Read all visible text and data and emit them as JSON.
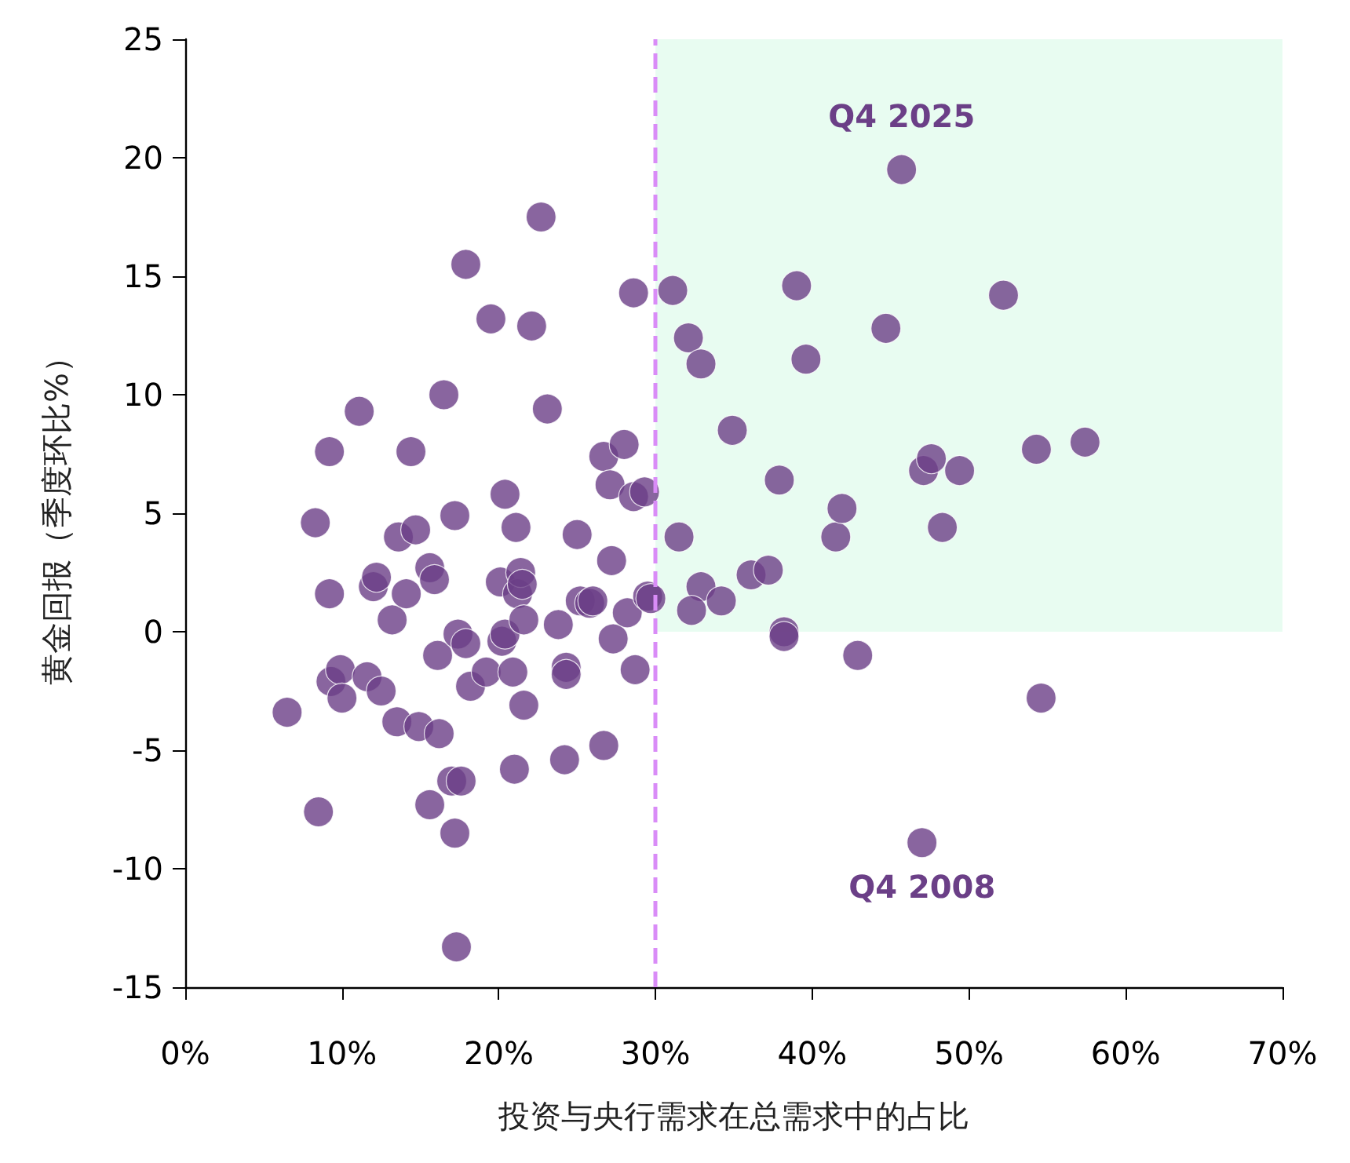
{
  "chart_data": {
    "type": "scatter",
    "xlabel": "投资与央行需求在总需求中的占比",
    "ylabel": "黄金回报（季度环比%）",
    "xlim": [
      0,
      70
    ],
    "ylim": [
      -15,
      25
    ],
    "xticks": [
      {
        "value": 0,
        "label": "0%"
      },
      {
        "value": 10,
        "label": "10%"
      },
      {
        "value": 20,
        "label": "20%"
      },
      {
        "value": 30,
        "label": "30%"
      },
      {
        "value": 40,
        "label": "40%"
      },
      {
        "value": 50,
        "label": "50%"
      },
      {
        "value": 60,
        "label": "60%"
      },
      {
        "value": 70,
        "label": "70%"
      }
    ],
    "yticks": [
      -15,
      -10,
      -5,
      0,
      5,
      10,
      15,
      20,
      25
    ],
    "grid": false,
    "marker": "circle",
    "series": [
      {
        "color": "#6b3f87",
        "x": [
          6.5,
          8.3,
          8.5,
          9.2,
          9.2,
          9.3,
          9.9,
          10.0,
          11.1,
          11.6,
          12.0,
          12.2,
          12.5,
          13.2,
          13.5,
          13.6,
          14.1,
          14.4,
          14.7,
          14.9,
          15.6,
          15.9,
          15.6,
          16.1,
          16.2,
          16.5,
          17.0,
          17.2,
          17.2,
          17.3,
          17.4,
          17.6,
          17.9,
          17.9,
          18.2,
          19.2,
          19.5,
          20.1,
          20.2,
          20.4,
          20.4,
          20.9,
          21.0,
          21.1,
          21.2,
          21.4,
          21.5,
          21.6,
          21.6,
          22.1,
          22.7,
          23.1,
          23.8,
          24.2,
          24.3,
          24.3,
          25.0,
          25.2,
          25.8,
          26.0,
          26.7,
          26.7,
          27.1,
          27.2,
          27.3,
          28.0,
          28.2,
          28.6,
          28.6,
          28.7,
          29.3,
          29.5,
          29.7,
          31.1,
          32.1,
          32.9,
          34.9,
          31.5,
          32.9,
          32.3,
          34.2,
          36.1,
          37.2,
          37.9,
          38.2,
          38.2,
          39.0,
          39.6,
          41.5,
          41.9,
          44.7,
          45.7,
          47.1,
          47.6,
          48.3,
          49.4,
          52.2,
          54.3,
          57.4,
          42.9,
          54.6,
          47.0
        ],
        "values": [
          -3.4,
          4.6,
          -7.6,
          7.6,
          1.6,
          -2.1,
          -1.6,
          -2.8,
          9.3,
          -1.9,
          1.9,
          2.3,
          -2.5,
          0.5,
          -3.8,
          4.0,
          1.6,
          7.6,
          4.3,
          -4.0,
          2.7,
          2.2,
          -7.3,
          -1.0,
          -4.3,
          10.0,
          -6.3,
          4.9,
          -8.5,
          -13.3,
          -0.1,
          -6.3,
          15.5,
          -0.5,
          -2.3,
          -1.7,
          13.2,
          2.1,
          -0.4,
          5.8,
          -0.1,
          -1.7,
          -5.8,
          4.4,
          1.6,
          2.5,
          2.0,
          0.5,
          -3.1,
          12.9,
          17.5,
          9.4,
          0.3,
          -5.4,
          -1.5,
          -1.8,
          4.1,
          1.3,
          1.2,
          1.3,
          7.4,
          -4.8,
          6.2,
          3.0,
          -0.3,
          7.9,
          0.8,
          5.7,
          14.3,
          -1.6,
          5.9,
          1.5,
          1.4,
          14.4,
          12.4,
          11.3,
          8.5,
          4.0,
          1.9,
          0.9,
          1.3,
          2.4,
          2.6,
          6.4,
          0.0,
          -0.2,
          14.6,
          11.5,
          4.0,
          5.2,
          12.8,
          19.5,
          6.8,
          7.3,
          4.4,
          6.8,
          14.2,
          7.7,
          8.0,
          -1.0,
          -2.8,
          -8.9
        ]
      }
    ],
    "ref_lines": [
      {
        "axis": "x",
        "value": 30,
        "color": "#d98cf7",
        "line_style": "dashed"
      }
    ],
    "bands": [
      {
        "axis": "x",
        "from": 30,
        "to": 70,
        "color": "#b4f5d2"
      }
    ],
    "annotations": [
      {
        "text": "Q4 2025",
        "x": 45.7,
        "y": 19.5
      },
      {
        "text": "Q4 2008",
        "x": 47.0,
        "y": -8.9
      }
    ]
  }
}
